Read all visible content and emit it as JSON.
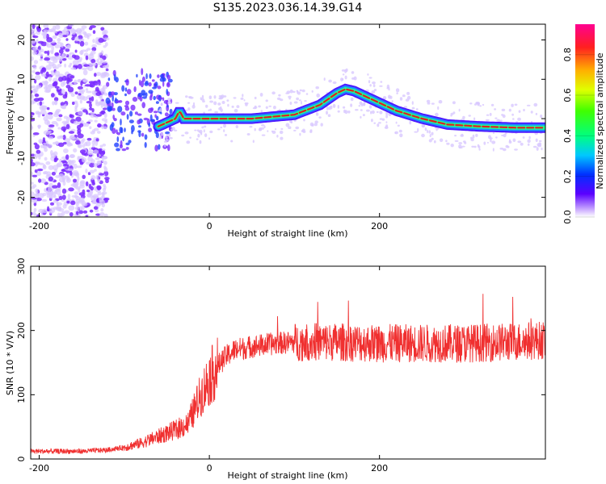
{
  "title": "S135.2023.036.14.39.G14",
  "colors": {
    "snr_line": "#f03030",
    "ridge_core": "#e02020",
    "ridge_halo": "#1a8cff",
    "noise": "#7a2cff",
    "noise_light": "#d8c8ff"
  },
  "chart_data": [
    {
      "type": "heatmap",
      "title": "S135.2023.036.14.39.G14",
      "xlabel": "Height of straight line (km)",
      "ylabel": "Frequency (Hz)",
      "xlim": [
        -210,
        395
      ],
      "ylim": [
        -25,
        24
      ],
      "x_ticks": [
        "-200",
        "0",
        "200"
      ],
      "y_ticks": [
        "20",
        "10",
        "0",
        "-10",
        "-20"
      ],
      "colorbar": {
        "label": "Normalized spectral amplitude",
        "range": [
          0,
          0.95
        ],
        "ticks": [
          "0.0",
          "0.2",
          "0.4",
          "0.6",
          "0.8"
        ]
      },
      "ridge": {
        "x": [
          -60,
          -50,
          -40,
          -35,
          -30,
          0,
          50,
          100,
          130,
          150,
          160,
          170,
          190,
          220,
          250,
          280,
          320,
          360,
          395
        ],
        "y": [
          -2,
          -1,
          0,
          2,
          0,
          0,
          0,
          1,
          3.5,
          6.5,
          7.5,
          7,
          5,
          2,
          0,
          -1.5,
          -2,
          -2.3,
          -2.3
        ]
      }
    },
    {
      "type": "line",
      "xlabel": "Height of straight line (km)",
      "ylabel": "SNR (10 * V/V)",
      "xlim": [
        -210,
        395
      ],
      "ylim": [
        0,
        300
      ],
      "x_ticks": [
        "-200",
        "0",
        "200"
      ],
      "y_ticks": [
        "300",
        "200",
        "100",
        "0"
      ],
      "trend": {
        "x": [
          -210,
          -150,
          -120,
          -100,
          -80,
          -60,
          -40,
          -25,
          -20,
          -10,
          0,
          10,
          20,
          30,
          50,
          80,
          100,
          150,
          200,
          250,
          300,
          350,
          395
        ],
        "y": [
          12,
          12,
          14,
          18,
          25,
          35,
          45,
          55,
          70,
          100,
          125,
          145,
          160,
          170,
          175,
          180,
          182,
          182,
          180,
          180,
          180,
          182,
          185
        ]
      }
    }
  ]
}
